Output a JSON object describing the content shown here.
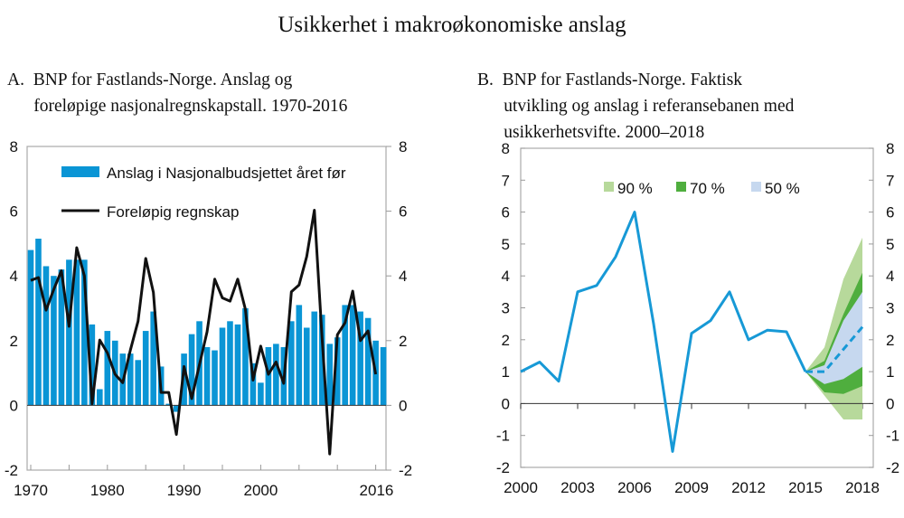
{
  "title": "Usikkerhet i makroøkonomiske anslag",
  "colors": {
    "bars": "#0a95d5",
    "line_a": "#111111",
    "line_b": "#1799d6",
    "band90": "#b7d99b",
    "band70": "#4fae3e",
    "band50": "#c6d8ef"
  },
  "chart_data": [
    {
      "type": "bar+line",
      "title_lines": [
        "A.  BNP for Fastlands-Norge. Anslag og",
        "      foreløpige nasjonalregnskapstall. 1970-2016"
      ],
      "ylim": [
        -2,
        8
      ],
      "yticks": [
        "-2",
        "0",
        "2",
        "4",
        "6",
        "8"
      ],
      "xtick_labels": [
        "1970",
        "1980",
        "1990",
        "2000",
        "2016"
      ],
      "xtick_years": [
        1970,
        1980,
        1990,
        2000,
        2015.1
      ],
      "legend": [
        "Anslag i Nasjonalbudsjettet året før",
        "Foreløpig regnskap"
      ],
      "bars": {
        "name": "Anslag i Nasjonalbudsjettet året før",
        "start_year": 1970,
        "values": [
          4.8,
          5.15,
          4.3,
          4.0,
          4.2,
          4.5,
          4.5,
          4.5,
          2.5,
          0.5,
          2.3,
          2.0,
          1.6,
          1.6,
          1.4,
          2.3,
          2.9,
          1.2,
          0.05,
          -0.2,
          1.6,
          2.2,
          2.6,
          1.8,
          1.7,
          2.4,
          2.6,
          2.5,
          3.0,
          1.3,
          0.7,
          1.8,
          1.9,
          1.8,
          2.6,
          3.1,
          2.4,
          2.9,
          2.8,
          1.9,
          2.1,
          3.1,
          3.1,
          2.9,
          2.7,
          2.0,
          1.8
        ]
      },
      "line": {
        "name": "Foreløpig regnskap",
        "start_year": 1970,
        "values": [
          3.86,
          3.95,
          2.94,
          3.58,
          4.16,
          2.44,
          4.87,
          4.0,
          0.05,
          2.02,
          1.62,
          0.96,
          0.7,
          1.71,
          2.6,
          4.54,
          3.49,
          0.4,
          0.4,
          -0.9,
          1.2,
          0.21,
          1.25,
          2.27,
          3.9,
          3.32,
          3.22,
          3.9,
          2.97,
          0.78,
          1.83,
          0.96,
          1.34,
          0.68,
          3.51,
          3.72,
          4.6,
          6.03,
          2.1,
          -1.5,
          2.18,
          2.55,
          3.53,
          2.0,
          2.3,
          0.96
        ]
      }
    },
    {
      "type": "line+fan",
      "title_lines": [
        "B.  BNP for Fastlands-Norge. Faktisk",
        "      utvikling og anslag i referansebanen med",
        "      usikkerhetsvifte. 2000–2018"
      ],
      "ylim": [
        -2,
        8
      ],
      "yticks": [
        "-2",
        "-1",
        "0",
        "1",
        "2",
        "3",
        "4",
        "5",
        "6",
        "7",
        "8"
      ],
      "xticks": [
        "2000",
        "2003",
        "2006",
        "2009",
        "2012",
        "2015",
        "2018"
      ],
      "legend": [
        "90 %",
        "70 %",
        "50 %"
      ],
      "actual": {
        "years": [
          2000,
          2001,
          2002,
          2003,
          2004,
          2005,
          2006,
          2007,
          2008,
          2009,
          2010,
          2011,
          2012,
          2013,
          2014,
          2015
        ],
        "values": [
          1.0,
          1.3,
          0.7,
          3.5,
          3.7,
          4.6,
          6.0,
          2.5,
          -1.5,
          2.2,
          2.6,
          3.5,
          2.0,
          2.3,
          2.25,
          1.0
        ]
      },
      "projection": {
        "years": [
          2015,
          2016,
          2017,
          2018
        ],
        "values": [
          1.0,
          1.0,
          1.7,
          2.4
        ]
      },
      "bands": {
        "years": [
          2015,
          2016,
          2017,
          2018
        ],
        "90": {
          "low": [
            1.0,
            0.25,
            -0.5,
            -0.5
          ],
          "high": [
            1.0,
            1.76,
            3.9,
            5.2
          ]
        },
        "70": {
          "low": [
            1.0,
            0.35,
            0.3,
            0.55
          ],
          "high": [
            1.0,
            1.34,
            2.8,
            4.1
          ]
        },
        "50": {
          "low": [
            1.0,
            0.61,
            0.77,
            1.15
          ],
          "high": [
            1.0,
            1.2,
            2.6,
            3.5
          ]
        }
      }
    }
  ]
}
